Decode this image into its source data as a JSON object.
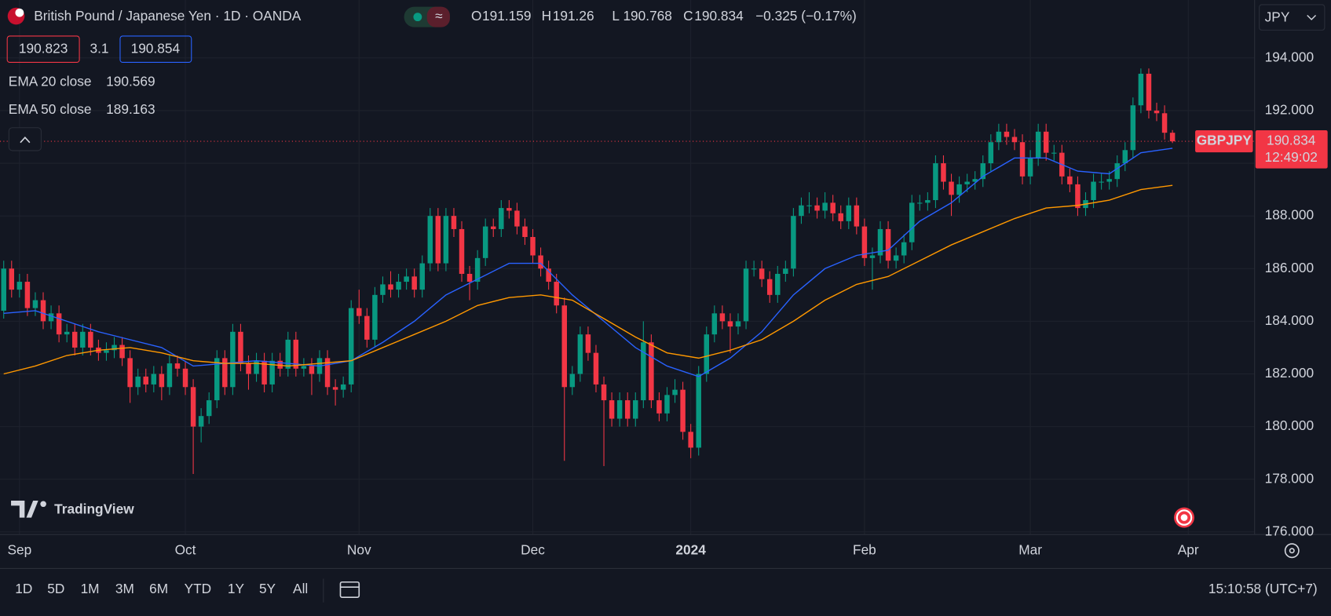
{
  "chart_data": {
    "type": "candlestick",
    "title": "British Pound / Japanese Yen · 1D · OANDA",
    "ohlc_labels": [
      "O",
      "H",
      "L",
      "C"
    ],
    "change": "−0.325 (−0.17%)",
    "bid": 190.823,
    "spread": 3.1,
    "ask": 190.854,
    "currency": "JPY",
    "symbol": "GBPJPY",
    "countdown": "12:49:02",
    "up_color": "#089981",
    "down_color": "#f23645",
    "open": [
      184.4,
      186.0,
      185.2,
      185.5,
      184.5,
      184.8,
      184.0,
      184.3,
      183.5,
      183.6,
      183.0,
      183.6,
      183.0,
      182.8,
      182.9,
      183.1,
      182.6,
      181.5,
      181.9,
      181.6,
      182.0,
      181.5,
      182.4,
      182.2,
      181.5,
      180.0,
      180.4,
      181.0,
      182.6,
      181.5,
      183.6,
      182.4,
      182.0,
      182.5,
      181.6,
      182.5,
      182.2,
      183.3,
      182.2,
      182.3,
      182.0,
      182.6,
      181.5,
      181.4,
      181.6,
      184.5,
      184.2,
      183.3,
      185.0,
      185.4,
      185.2,
      185.5,
      185.7,
      185.2,
      186.2,
      188.0,
      186.2,
      188.0,
      187.5,
      185.8,
      185.5,
      186.4,
      187.6,
      187.5,
      188.3,
      188.2,
      187.6,
      187.2,
      186.5,
      186.0,
      185.5,
      184.6,
      181.5,
      182.0,
      183.5,
      182.8,
      181.6,
      181.0,
      180.3,
      181.0,
      180.3,
      181.0,
      183.2,
      181.0,
      180.5,
      181.2,
      181.4,
      179.8,
      179.2,
      182.0,
      183.5,
      184.3,
      184.0,
      183.8,
      184.0,
      186.0,
      186.0,
      185.6,
      185.0,
      185.8,
      186.0,
      188.0,
      188.4,
      188.4,
      188.2,
      188.5,
      188.1,
      187.8,
      188.4,
      187.6,
      186.4,
      186.5,
      187.5,
      186.3,
      186.5,
      187.0,
      188.5,
      188.5,
      188.6,
      190.0,
      189.3,
      188.8,
      189.2,
      189.3,
      189.4,
      190.0,
      190.8,
      191.2,
      191.0,
      190.8,
      189.5,
      190.2,
      191.2,
      190.4,
      190.4,
      189.5,
      189.2,
      188.3,
      188.6,
      189.3,
      189.3,
      189.4,
      190.0,
      190.5,
      192.2,
      193.4,
      192.0,
      191.9,
      191.159
    ],
    "high": [
      186.3,
      186.3,
      185.8,
      185.8,
      185.1,
      185.1,
      184.6,
      184.6,
      183.9,
      183.9,
      183.9,
      183.9,
      183.3,
      183.2,
      183.4,
      183.4,
      182.9,
      182.2,
      182.2,
      182.3,
      182.3,
      182.7,
      182.7,
      182.5,
      181.8,
      180.7,
      181.3,
      182.9,
      182.9,
      183.9,
      183.9,
      182.7,
      182.8,
      182.8,
      182.8,
      182.8,
      183.6,
      183.6,
      182.6,
      182.6,
      182.9,
      182.9,
      181.8,
      181.9,
      184.8,
      185.2,
      184.5,
      185.3,
      185.7,
      185.9,
      185.8,
      186.0,
      186.0,
      186.5,
      188.3,
      188.3,
      188.3,
      188.3,
      187.8,
      186.1,
      186.7,
      187.9,
      187.9,
      188.6,
      188.6,
      188.5,
      187.9,
      187.5,
      186.8,
      186.3,
      185.8,
      184.9,
      182.3,
      183.8,
      183.8,
      183.1,
      181.9,
      181.3,
      181.3,
      181.3,
      181.3,
      184.0,
      183.5,
      181.3,
      181.5,
      181.8,
      181.7,
      180.1,
      182.3,
      183.8,
      184.6,
      184.6,
      184.3,
      184.3,
      186.3,
      186.3,
      186.3,
      185.9,
      186.1,
      186.3,
      188.3,
      188.7,
      188.9,
      188.7,
      188.9,
      188.8,
      188.4,
      188.7,
      188.7,
      187.9,
      186.8,
      187.8,
      187.8,
      186.8,
      187.3,
      188.8,
      188.8,
      188.9,
      190.3,
      190.3,
      189.6,
      189.5,
      189.6,
      189.7,
      190.3,
      191.1,
      191.5,
      191.5,
      191.3,
      191.1,
      190.5,
      191.5,
      191.5,
      190.7,
      190.7,
      189.8,
      189.5,
      188.9,
      189.6,
      189.6,
      189.7,
      190.3,
      190.8,
      192.5,
      193.6,
      193.6,
      192.3,
      192.2,
      191.26
    ],
    "low": [
      184.1,
      184.9,
      184.9,
      184.2,
      184.2,
      183.7,
      183.7,
      183.2,
      183.2,
      182.7,
      182.7,
      182.7,
      182.5,
      182.5,
      182.6,
      182.3,
      180.9,
      181.2,
      181.3,
      181.3,
      181.0,
      181.2,
      181.9,
      181.2,
      178.2,
      179.4,
      180.1,
      180.7,
      181.2,
      181.2,
      182.1,
      181.4,
      181.7,
      181.3,
      181.3,
      181.9,
      181.9,
      181.9,
      181.9,
      181.2,
      181.7,
      181.2,
      180.8,
      181.1,
      181.3,
      183.9,
      183.0,
      183.0,
      184.7,
      184.9,
      184.9,
      185.2,
      184.9,
      184.9,
      185.9,
      185.9,
      185.9,
      187.2,
      185.5,
      184.8,
      185.2,
      186.1,
      187.2,
      187.2,
      187.9,
      187.3,
      186.9,
      186.2,
      185.7,
      185.2,
      184.3,
      178.7,
      181.2,
      181.7,
      182.5,
      181.3,
      178.5,
      180.0,
      180.0,
      180.0,
      180.0,
      180.7,
      180.7,
      180.2,
      180.2,
      180.9,
      179.5,
      178.8,
      178.9,
      181.7,
      183.2,
      183.7,
      182.8,
      183.5,
      183.7,
      185.7,
      185.3,
      184.7,
      184.7,
      185.5,
      185.7,
      187.7,
      188.1,
      187.9,
      187.9,
      187.8,
      187.5,
      187.5,
      187.3,
      186.1,
      185.2,
      186.2,
      186.0,
      186.0,
      186.2,
      186.7,
      188.2,
      188.2,
      188.3,
      189.0,
      188.0,
      188.5,
      188.9,
      189.0,
      189.1,
      189.7,
      190.5,
      190.7,
      190.5,
      189.2,
      189.2,
      189.9,
      190.1,
      190.1,
      189.2,
      188.9,
      188.0,
      188.0,
      188.3,
      189.0,
      189.0,
      189.1,
      189.7,
      190.2,
      191.9,
      191.7,
      191.6,
      190.9,
      190.768
    ],
    "close": [
      186.0,
      185.2,
      185.5,
      184.5,
      184.8,
      184.0,
      184.3,
      183.5,
      183.6,
      183.0,
      183.6,
      183.0,
      182.8,
      182.9,
      183.1,
      182.6,
      181.5,
      181.9,
      181.6,
      182.0,
      181.5,
      182.4,
      182.2,
      181.5,
      180.0,
      180.4,
      181.0,
      182.6,
      181.5,
      183.6,
      182.4,
      182.0,
      182.5,
      181.6,
      182.5,
      182.2,
      183.3,
      182.2,
      182.3,
      182.0,
      182.6,
      181.5,
      181.4,
      181.6,
      184.5,
      184.2,
      183.3,
      185.0,
      185.4,
      185.2,
      185.5,
      185.7,
      185.2,
      186.2,
      188.0,
      186.2,
      188.0,
      187.5,
      185.8,
      185.5,
      186.4,
      187.6,
      187.5,
      188.3,
      188.2,
      187.6,
      187.2,
      186.5,
      186.0,
      185.5,
      184.6,
      181.5,
      182.0,
      183.5,
      182.8,
      181.6,
      181.0,
      180.3,
      181.0,
      180.3,
      181.0,
      183.2,
      181.0,
      180.5,
      181.2,
      181.4,
      179.8,
      179.2,
      182.0,
      183.5,
      184.3,
      184.0,
      183.8,
      184.0,
      186.0,
      186.0,
      185.6,
      185.0,
      185.8,
      186.0,
      188.0,
      188.4,
      188.4,
      188.2,
      188.5,
      188.1,
      187.8,
      188.4,
      187.6,
      186.4,
      186.5,
      187.5,
      186.3,
      186.5,
      187.0,
      188.5,
      188.5,
      188.6,
      190.0,
      189.3,
      188.8,
      189.2,
      189.3,
      189.4,
      190.0,
      190.8,
      191.2,
      191.0,
      190.8,
      189.5,
      190.2,
      191.2,
      190.4,
      190.4,
      189.5,
      189.2,
      188.3,
      188.6,
      189.3,
      189.3,
      189.4,
      190.0,
      190.5,
      192.2,
      193.4,
      192.0,
      191.9,
      191.159,
      190.834
    ],
    "overlays": [
      {
        "name": "EMA 20 close",
        "color": "#2962ff",
        "x": [
          0,
          4,
          8,
          12,
          16,
          20,
          24,
          28,
          32,
          36,
          40,
          44,
          48,
          52,
          56,
          60,
          64,
          68,
          72,
          76,
          80,
          84,
          88,
          92,
          96,
          100,
          104,
          108,
          112,
          116,
          120,
          124,
          128,
          132,
          136,
          140,
          144,
          148
        ],
        "values": [
          184.3,
          184.4,
          184,
          183.6,
          183.3,
          183,
          182.3,
          182.4,
          182.5,
          182.4,
          182.3,
          182.5,
          183.2,
          184,
          185,
          185.6,
          186.2,
          186.2,
          185,
          184,
          183,
          182.3,
          181.9,
          182.6,
          183.6,
          185,
          186,
          186.5,
          186.7,
          187.8,
          188.5,
          189.5,
          190.2,
          190.2,
          189.7,
          189.6,
          190.4,
          190.569
        ]
      },
      {
        "name": "EMA 50 close",
        "color": "#ff9800",
        "x": [
          0,
          4,
          8,
          12,
          16,
          20,
          24,
          28,
          32,
          36,
          40,
          44,
          48,
          52,
          56,
          60,
          64,
          68,
          72,
          76,
          80,
          84,
          88,
          92,
          96,
          100,
          104,
          108,
          112,
          116,
          120,
          124,
          128,
          132,
          136,
          140,
          144,
          148
        ],
        "values": [
          182,
          182.3,
          182.7,
          182.9,
          183,
          182.8,
          182.5,
          182.4,
          182.4,
          182.3,
          182.4,
          182.5,
          183,
          183.5,
          184,
          184.6,
          184.9,
          185,
          184.8,
          184.1,
          183.4,
          182.8,
          182.6,
          182.9,
          183.3,
          184,
          184.8,
          185.4,
          185.7,
          186.3,
          186.9,
          187.4,
          187.9,
          188.3,
          188.4,
          188.6,
          189,
          189.163
        ]
      }
    ],
    "xlim": [
      -0.47,
      158.4
    ],
    "xticks": [
      {
        "value": 2,
        "label": "Sep"
      },
      {
        "value": 23,
        "label": "Oct"
      },
      {
        "value": 45,
        "label": "Nov"
      },
      {
        "value": 67,
        "label": "Dec"
      },
      {
        "value": 87,
        "label": "2024"
      },
      {
        "value": 109,
        "label": "Feb"
      },
      {
        "value": 130,
        "label": "Mar"
      },
      {
        "value": 150,
        "label": "Apr"
      }
    ],
    "ylim": [
      175.9,
      196.2
    ],
    "yticks": [
      {
        "value": 176,
        "label": "176.000"
      },
      {
        "value": 178,
        "label": "178.000"
      },
      {
        "value": 180,
        "label": "180.000"
      },
      {
        "value": 182,
        "label": "182.000"
      },
      {
        "value": 184,
        "label": "184.000"
      },
      {
        "value": 186,
        "label": "186.000"
      },
      {
        "value": 188,
        "label": "188.000"
      },
      {
        "value": 190,
        "label": "190.000"
      },
      {
        "value": 192,
        "label": "192.000"
      },
      {
        "value": 194,
        "label": "194.000"
      }
    ],
    "grid": true
  },
  "toolbar": {
    "timeframes": [
      "1D",
      "5D",
      "1M",
      "3M",
      "6M",
      "YTD",
      "1Y",
      "5Y",
      "All"
    ],
    "clock": "15:10:58 (UTC+7)"
  },
  "watermark": "TradingView"
}
